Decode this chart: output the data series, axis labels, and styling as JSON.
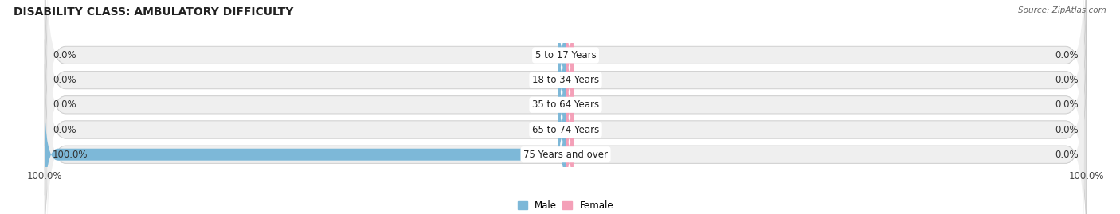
{
  "title": "DISABILITY CLASS: AMBULATORY DIFFICULTY",
  "source": "Source: ZipAtlas.com",
  "categories": [
    "5 to 17 Years",
    "18 to 34 Years",
    "35 to 64 Years",
    "65 to 74 Years",
    "75 Years and over"
  ],
  "male_values": [
    0.0,
    0.0,
    0.0,
    0.0,
    100.0
  ],
  "female_values": [
    0.0,
    0.0,
    0.0,
    0.0,
    0.0
  ],
  "male_color": "#7db8d8",
  "female_color": "#f4a0b8",
  "row_bg_color": "#e0e0e0",
  "row_inner_color": "#efefef",
  "title_fontsize": 10,
  "label_fontsize": 8.5,
  "tick_fontsize": 8.5,
  "max_value": 100.0,
  "background_color": "#ffffff"
}
